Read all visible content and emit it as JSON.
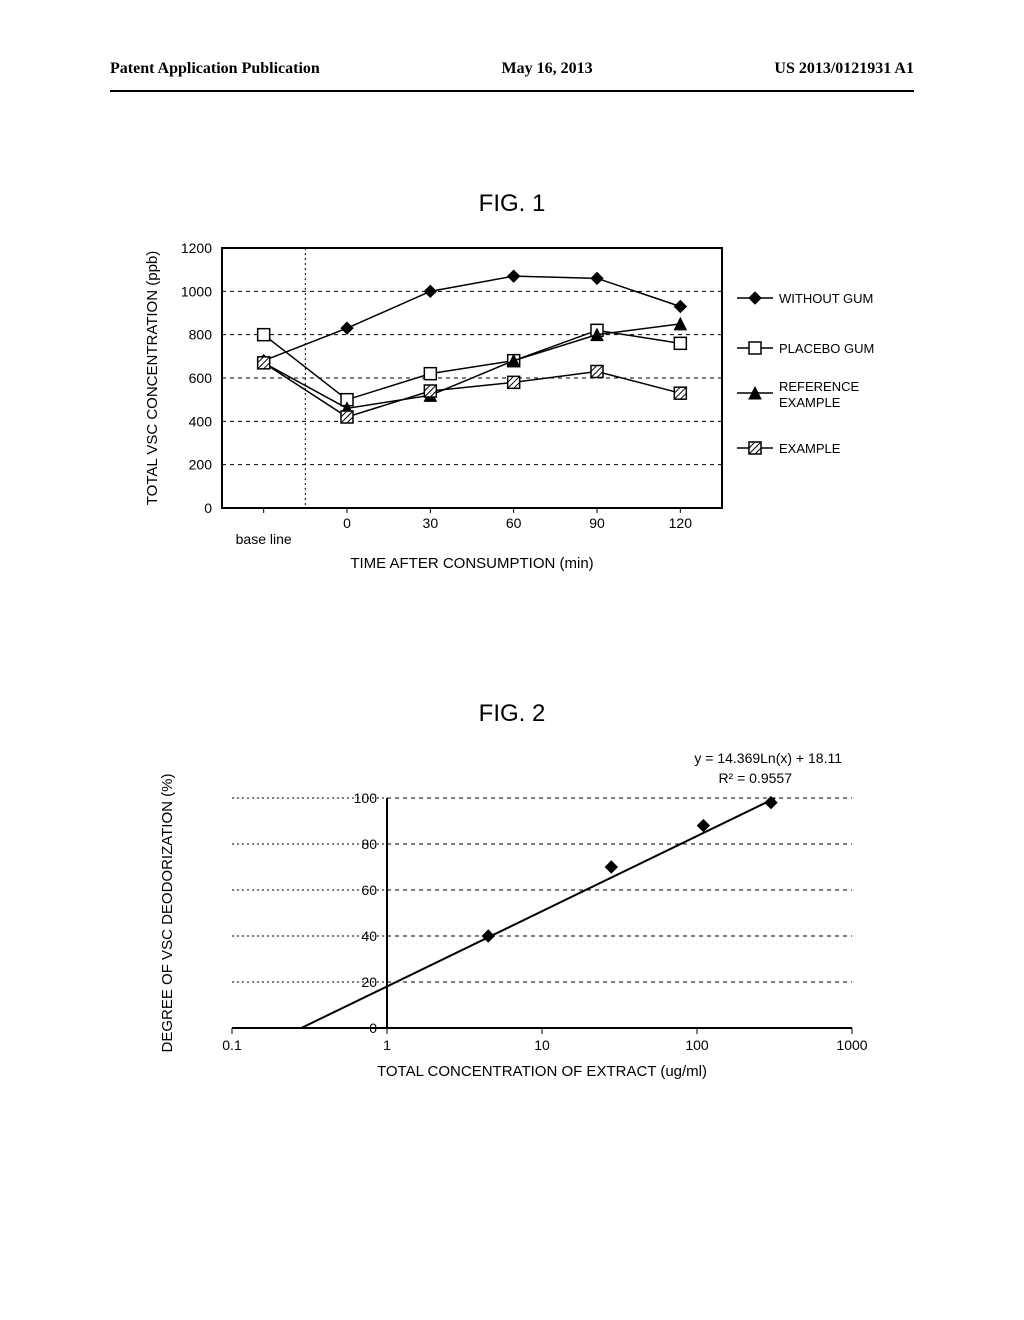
{
  "header": {
    "left": "Patent Application Publication",
    "center": "May 16, 2013",
    "right": "US 2013/0121931 A1"
  },
  "fig1": {
    "title": "FIG. 1",
    "type": "line",
    "bg": "#ffffff",
    "grid_color": "#000000",
    "ylabel": "TOTAL VSC CONCENTRATION (ppb)",
    "xlabel": "TIME AFTER CONSUMPTION (min)",
    "x_categories": [
      "base line",
      "0",
      "30",
      "60",
      "90",
      "120"
    ],
    "ylim": [
      0,
      1200
    ],
    "ytick_step": 200,
    "series": [
      {
        "name": "WITHOUT GUM",
        "marker": "diamond-filled",
        "values": [
          680,
          830,
          1000,
          1070,
          1060,
          930
        ]
      },
      {
        "name": "PLACEBO GUM",
        "marker": "square-open",
        "values": [
          800,
          500,
          620,
          680,
          820,
          760
        ]
      },
      {
        "name": "REFERENCE EXAMPLE",
        "marker": "triangle-filled",
        "values": [
          670,
          460,
          520,
          680,
          800,
          850
        ]
      },
      {
        "name": "EXAMPLE",
        "marker": "square-hatched",
        "values": [
          670,
          420,
          540,
          580,
          630,
          530
        ]
      }
    ],
    "legend_dash": true
  },
  "fig2": {
    "title": "FIG. 2",
    "type": "scatter-log",
    "bg": "#ffffff",
    "grid_color": "#000000",
    "ylabel": "DEGREE OF VSC DEODORIZATION (%)",
    "xlabel": "TOTAL CONCENTRATION OF EXTRACT (ug/ml)",
    "annotation1": "y = 14.369Ln(x) + 18.11",
    "annotation2": "R² = 0.9557",
    "x_log_ticks": [
      0.1,
      1,
      10,
      100,
      1000
    ],
    "ylim": [
      0,
      100
    ],
    "ytick_step": 20,
    "points": [
      {
        "x": 4.5,
        "y": 40
      },
      {
        "x": 28,
        "y": 70
      },
      {
        "x": 110,
        "y": 88
      },
      {
        "x": 300,
        "y": 98
      }
    ],
    "fit_line": {
      "x1": 0.28,
      "y1": 0,
      "x2": 320,
      "y2": 100
    },
    "marker": "diamond-filled"
  }
}
